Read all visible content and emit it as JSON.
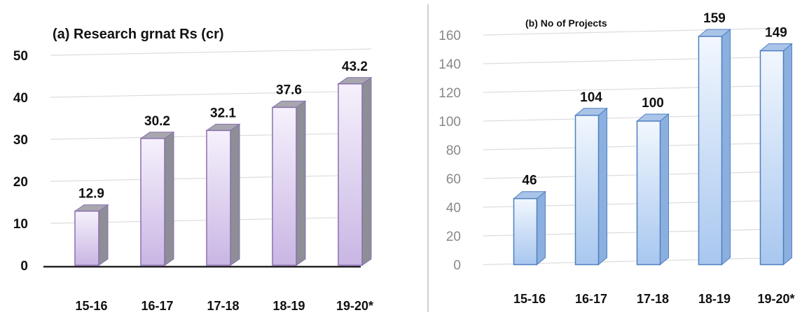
{
  "chart_data": [
    {
      "type": "bar",
      "title": "(a) Research grnat Rs (cr)",
      "categories": [
        "15-16",
        "16-17",
        "17-18",
        "18-19",
        "19-20*"
      ],
      "values": [
        12.9,
        30.2,
        32.1,
        37.6,
        43.2
      ],
      "data_labels": [
        "12.9",
        "30.2",
        "32.1",
        "37.6",
        "43.2"
      ],
      "yticks": [
        "0",
        "10",
        "20",
        "30",
        "40",
        "50"
      ],
      "ylim": [
        0,
        50
      ],
      "grid": true,
      "colors": {
        "front_top": "#f6f1fc",
        "front_bottom": "#c9b6e4",
        "edge": "#8a6fb0",
        "side": "#8e8e96",
        "top": "#a7a7ad"
      }
    },
    {
      "type": "bar",
      "title": "(b) No of Projects",
      "categories": [
        "15-16",
        "16-17",
        "17-18",
        "18-19",
        "19-20*"
      ],
      "values": [
        46,
        104,
        100,
        159,
        149
      ],
      "data_labels": [
        "46",
        "104",
        "100",
        "159",
        "149"
      ],
      "yticks": [
        "0",
        "20",
        "40",
        "60",
        "80",
        "100",
        "120",
        "140",
        "160"
      ],
      "ylim": [
        0,
        160
      ],
      "grid": true,
      "colors": {
        "front_top": "#f2f7fe",
        "front_bottom": "#a8c7ef",
        "edge": "#4f7fc0",
        "side": "#8bb0e0",
        "top": "#a9c4e8"
      }
    }
  ]
}
